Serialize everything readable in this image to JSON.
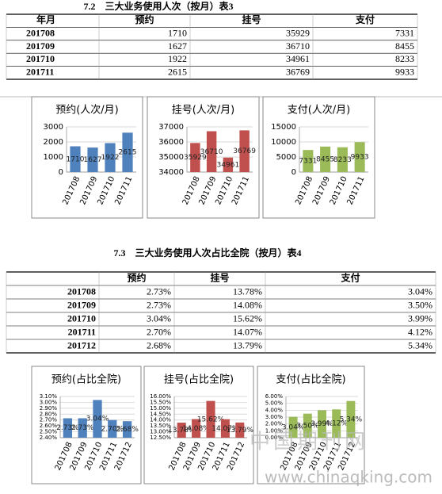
{
  "section1": {
    "title": "7.2　三大业务使用人次（按月）表3",
    "table": {
      "header": [
        "年月",
        "预约",
        "挂号",
        "支付"
      ],
      "rows": [
        [
          "201708",
          "1710",
          "35929",
          "7331"
        ],
        [
          "201709",
          "1627",
          "36710",
          "8455"
        ],
        [
          "201710",
          "1922",
          "34961",
          "8233"
        ],
        [
          "201711",
          "2615",
          "36769",
          "9933"
        ]
      ]
    }
  },
  "charts1": [
    {
      "type": "bar",
      "title": "预约(人次/月)",
      "categories": [
        "201708",
        "201709",
        "201710",
        "201711"
      ],
      "values": [
        1710,
        1627,
        1922,
        2615
      ],
      "color": "#4f81bd",
      "ylim": [
        0,
        3000
      ],
      "yticks": [
        0,
        1000,
        2000,
        3000
      ],
      "grid": true
    },
    {
      "type": "bar",
      "title": "挂号(人次/月)",
      "categories": [
        "201708",
        "201709",
        "201710",
        "201711"
      ],
      "values": [
        35929,
        36710,
        34961,
        36769
      ],
      "color": "#c0504d",
      "ylim": [
        34000,
        37000
      ],
      "yticks": [
        34000,
        35000,
        36000,
        37000
      ],
      "grid": true
    },
    {
      "type": "bar",
      "title": "支付(人次/月)",
      "categories": [
        "201708",
        "201709",
        "201710",
        "201711"
      ],
      "values": [
        7331,
        8455,
        8233,
        9933
      ],
      "color": "#9bbb59",
      "ylim": [
        0,
        15000
      ],
      "yticks": [
        0,
        5000,
        10000,
        15000
      ],
      "grid": true
    }
  ],
  "section2": {
    "title": "7.3　三大业务使用人次占比全院（按月）表4",
    "table": {
      "header": [
        "预约",
        "挂号",
        "支付"
      ],
      "rows": [
        [
          "201708",
          "2.73%",
          "13.78%",
          "3.04%"
        ],
        [
          "201709",
          "2.73%",
          "14.08%",
          "3.50%"
        ],
        [
          "201710",
          "3.04%",
          "15.62%",
          "3.99%"
        ],
        [
          "201711",
          "2.70%",
          "14.07%",
          "4.12%"
        ],
        [
          "201712",
          "2.68%",
          "13.79%",
          "5.34%"
        ]
      ]
    }
  },
  "charts2": [
    {
      "type": "bar",
      "title": "预约(占比全院)",
      "categories": [
        "201708",
        "201709",
        "201710",
        "201711",
        "201712"
      ],
      "values": [
        2.73,
        2.73,
        3.04,
        2.7,
        2.68
      ],
      "value_labels": [
        "2.73%",
        "2.73%",
        "3.04%",
        "2.70%",
        "2.68%"
      ],
      "color": "#4f81bd",
      "ylim": [
        2.4,
        3.1
      ],
      "yticks": [
        {
          "value": 2.4,
          "label": "2.40%"
        },
        {
          "value": 2.5,
          "label": "2.50%"
        },
        {
          "value": 2.6,
          "label": "2.60%"
        },
        {
          "value": 2.7,
          "label": "2.70%"
        },
        {
          "value": 2.8,
          "label": "2.80%"
        },
        {
          "value": 2.9,
          "label": "2.90%"
        },
        {
          "value": 3.0,
          "label": "3.00%"
        },
        {
          "value": 3.1,
          "label": "3.10%"
        }
      ],
      "grid": true
    },
    {
      "type": "bar",
      "title": "挂号(占比全院)",
      "categories": [
        "201708",
        "201709",
        "201710",
        "201711",
        "201712"
      ],
      "values": [
        13.78,
        14.08,
        15.62,
        14.07,
        13.79
      ],
      "value_labels": [
        "13.78%",
        "14.08%",
        "15.62%",
        "14.07%",
        "13.79%"
      ],
      "color": "#c0504d",
      "ylim": [
        12.5,
        16
      ],
      "yticks": [
        {
          "value": 12.5,
          "label": "12.50%"
        },
        {
          "value": 13,
          "label": "13.00%"
        },
        {
          "value": 13.5,
          "label": "13.50%"
        },
        {
          "value": 14,
          "label": "14.00%"
        },
        {
          "value": 14.5,
          "label": "14.50%"
        },
        {
          "value": 15,
          "label": "15.00%"
        },
        {
          "value": 15.5,
          "label": "15.50%"
        },
        {
          "value": 16,
          "label": "16.00%"
        }
      ],
      "grid": true
    },
    {
      "type": "bar",
      "title": "支付(占比全院)",
      "categories": [
        "201708",
        "201709",
        "201710",
        "201711",
        "201712"
      ],
      "values": [
        3.04,
        3.5,
        3.99,
        4.12,
        5.34
      ],
      "value_labels": [
        "3.04%",
        "3.50%",
        "3.99%",
        "4.12%",
        "5.34%"
      ],
      "color": "#9bbb59",
      "ylim": [
        0,
        6
      ],
      "yticks": [
        {
          "value": 0,
          "label": "0.00%"
        },
        {
          "value": 1,
          "label": "1.00%"
        },
        {
          "value": 2,
          "label": "2.00%"
        },
        {
          "value": 3,
          "label": "3.00%"
        },
        {
          "value": 4,
          "label": "4.00%"
        },
        {
          "value": 5,
          "label": "5.00%"
        },
        {
          "value": 6,
          "label": "6.00%"
        }
      ],
      "grid": true
    }
  ],
  "watermark": [
    "中国期刊网",
    "www.chinaqking.com"
  ]
}
